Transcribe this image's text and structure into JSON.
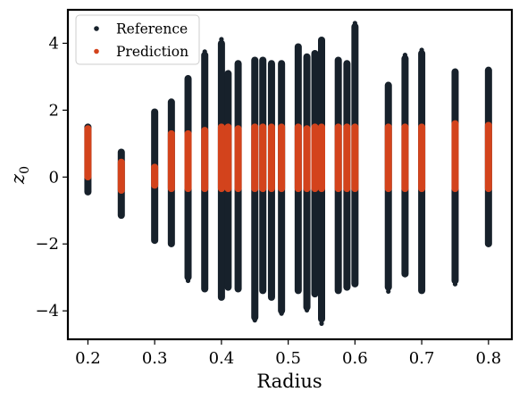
{
  "chart_data": {
    "type": "scatter",
    "xlabel": "Radius",
    "ylabel": "z",
    "ylabel_subscript": "0",
    "xlim": [
      0.17,
      0.835
    ],
    "ylim": [
      -4.85,
      5.0
    ],
    "xticks": [
      0.2,
      0.3,
      0.4,
      0.5,
      0.6,
      0.7,
      0.8
    ],
    "xtick_labels": [
      "0.2",
      "0.3",
      "0.4",
      "0.5",
      "0.6",
      "0.7",
      "0.8"
    ],
    "yticks": [
      -4,
      -2,
      0,
      2,
      4
    ],
    "ytick_labels": [
      "−4",
      "−2",
      "0",
      "2",
      "4"
    ],
    "grid": false,
    "legend_position": "top-left",
    "series": [
      {
        "name": "Reference",
        "color": "#17212b",
        "columns": [
          {
            "x": 0.2,
            "ymin": -0.55,
            "ymax": 1.6
          },
          {
            "x": 0.25,
            "ymin": -1.25,
            "ymax": 0.85
          },
          {
            "x": 0.3,
            "ymin": -2.0,
            "ymax": 2.05
          },
          {
            "x": 0.325,
            "ymin": -2.1,
            "ymax": 2.35
          },
          {
            "x": 0.35,
            "ymin": -3.1,
            "ymax": 3.05
          },
          {
            "x": 0.375,
            "ymin": -3.45,
            "ymax": 3.75
          },
          {
            "x": 0.4,
            "ymin": -3.7,
            "ymax": 4.1
          },
          {
            "x": 0.41,
            "ymin": -3.4,
            "ymax": 3.2
          },
          {
            "x": 0.425,
            "ymin": -3.45,
            "ymax": 3.5
          },
          {
            "x": 0.45,
            "ymin": -4.3,
            "ymax": 3.6
          },
          {
            "x": 0.462,
            "ymin": -3.5,
            "ymax": 3.6
          },
          {
            "x": 0.475,
            "ymin": -3.7,
            "ymax": 3.5
          },
          {
            "x": 0.49,
            "ymin": -4.1,
            "ymax": 3.5
          },
          {
            "x": 0.515,
            "ymin": -3.5,
            "ymax": 4.0
          },
          {
            "x": 0.528,
            "ymin": -4.0,
            "ymax": 3.7
          },
          {
            "x": 0.54,
            "ymin": -3.6,
            "ymax": 3.8
          },
          {
            "x": 0.55,
            "ymin": -4.35,
            "ymax": 4.2
          },
          {
            "x": 0.575,
            "ymin": -3.5,
            "ymax": 3.6
          },
          {
            "x": 0.588,
            "ymin": -3.4,
            "ymax": 3.5
          },
          {
            "x": 0.6,
            "ymin": -3.3,
            "ymax": 4.6
          },
          {
            "x": 0.65,
            "ymin": -3.4,
            "ymax": 2.85
          },
          {
            "x": 0.675,
            "ymin": -3.0,
            "ymax": 3.65
          },
          {
            "x": 0.7,
            "ymin": -3.5,
            "ymax": 3.8
          },
          {
            "x": 0.75,
            "ymin": -3.2,
            "ymax": 3.25
          },
          {
            "x": 0.8,
            "ymin": -2.1,
            "ymax": 3.3
          }
        ]
      },
      {
        "name": "Prediction",
        "color": "#d3431c",
        "columns": [
          {
            "x": 0.2,
            "ymin": -0.1,
            "ymax": 1.55
          },
          {
            "x": 0.25,
            "ymin": -0.5,
            "ymax": 0.55
          },
          {
            "x": 0.3,
            "ymin": -0.35,
            "ymax": 0.4
          },
          {
            "x": 0.325,
            "ymin": -0.45,
            "ymax": 1.4
          },
          {
            "x": 0.35,
            "ymin": -0.45,
            "ymax": 1.4
          },
          {
            "x": 0.375,
            "ymin": -0.45,
            "ymax": 1.5
          },
          {
            "x": 0.4,
            "ymin": -0.45,
            "ymax": 1.6
          },
          {
            "x": 0.41,
            "ymin": -0.45,
            "ymax": 1.6
          },
          {
            "x": 0.425,
            "ymin": -0.45,
            "ymax": 1.55
          },
          {
            "x": 0.45,
            "ymin": -0.45,
            "ymax": 1.6
          },
          {
            "x": 0.462,
            "ymin": -0.45,
            "ymax": 1.6
          },
          {
            "x": 0.475,
            "ymin": -0.45,
            "ymax": 1.6
          },
          {
            "x": 0.49,
            "ymin": -0.45,
            "ymax": 1.6
          },
          {
            "x": 0.515,
            "ymin": -0.45,
            "ymax": 1.6
          },
          {
            "x": 0.528,
            "ymin": -0.45,
            "ymax": 1.55
          },
          {
            "x": 0.54,
            "ymin": -0.45,
            "ymax": 1.6
          },
          {
            "x": 0.55,
            "ymin": -0.45,
            "ymax": 1.6
          },
          {
            "x": 0.575,
            "ymin": -0.45,
            "ymax": 1.6
          },
          {
            "x": 0.588,
            "ymin": -0.45,
            "ymax": 1.6
          },
          {
            "x": 0.6,
            "ymin": -0.45,
            "ymax": 1.6
          },
          {
            "x": 0.65,
            "ymin": -0.45,
            "ymax": 1.6
          },
          {
            "x": 0.675,
            "ymin": -0.45,
            "ymax": 1.6
          },
          {
            "x": 0.7,
            "ymin": -0.45,
            "ymax": 1.6
          },
          {
            "x": 0.75,
            "ymin": -0.45,
            "ymax": 1.7
          },
          {
            "x": 0.8,
            "ymin": -0.45,
            "ymax": 1.65
          }
        ]
      }
    ],
    "outliers": [
      {
        "x": 0.4,
        "y": 4.12
      },
      {
        "x": 0.375,
        "y": 3.75
      },
      {
        "x": 0.45,
        "y": -4.28
      },
      {
        "x": 0.49,
        "y": -4.08
      },
      {
        "x": 0.55,
        "y": -4.38
      },
      {
        "x": 0.6,
        "y": 4.6
      },
      {
        "x": 0.675,
        "y": 3.65
      },
      {
        "x": 0.7,
        "y": 3.8
      },
      {
        "x": 0.528,
        "y": -3.98
      },
      {
        "x": 0.35,
        "y": -3.1
      },
      {
        "x": 0.75,
        "y": -3.2
      },
      {
        "x": 0.65,
        "y": -3.42
      }
    ]
  }
}
